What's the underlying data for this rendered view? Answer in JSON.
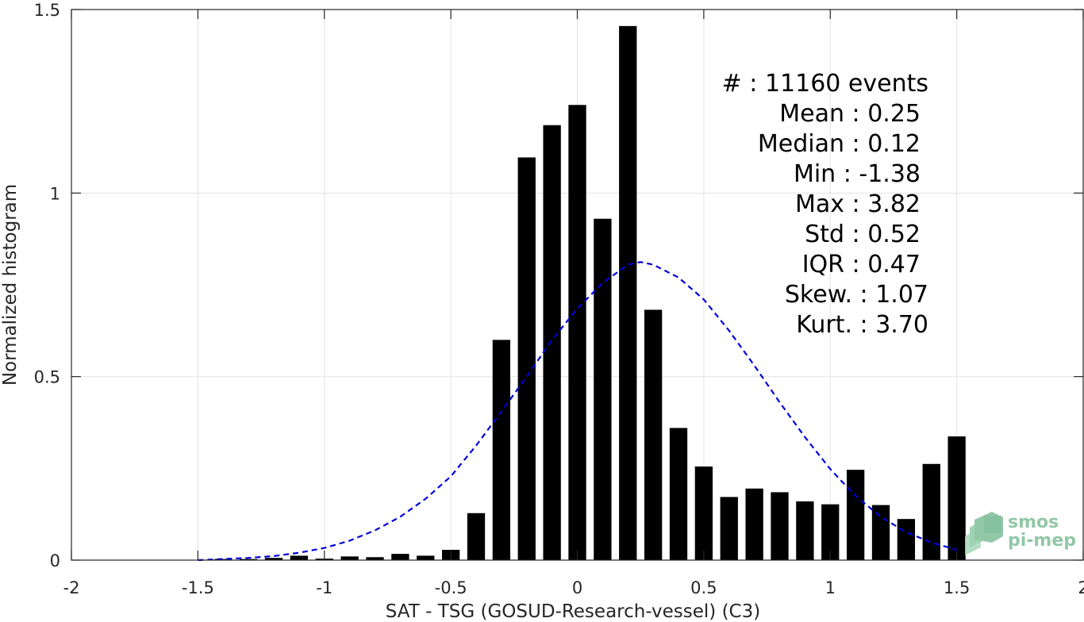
{
  "chart_data": {
    "type": "bar",
    "xlabel": "SAT - TSG (GOSUD-Research-vessel) (C3)",
    "ylabel": "Normalized histogram",
    "xlim": [
      -2,
      2
    ],
    "ylim": [
      0,
      1.5
    ],
    "xticks": [
      -2,
      -1.5,
      -1,
      -0.5,
      0,
      0.5,
      1,
      1.5,
      2
    ],
    "xtick_labels": [
      "-2",
      "-1.5",
      "-1",
      "-0.5",
      "0",
      "0.5",
      "1",
      "1.5",
      "2"
    ],
    "yticks": [
      0,
      0.5,
      1,
      1.5
    ],
    "ytick_labels": [
      "0",
      "0.5",
      "1",
      "1.5"
    ],
    "grid": true,
    "bar_color": "#000000",
    "bars": {
      "centers": [
        -1.4,
        -1.3,
        -1.2,
        -1.1,
        -1.0,
        -0.9,
        -0.8,
        -0.7,
        -0.6,
        -0.5,
        -0.4,
        -0.3,
        -0.2,
        -0.1,
        0.0,
        0.1,
        0.2,
        0.3,
        0.4,
        0.5,
        0.6,
        0.7,
        0.8,
        0.9,
        1.0,
        1.1,
        1.2,
        1.3,
        1.4,
        1.5
      ],
      "values": [
        0.003,
        0.003,
        0.006,
        0.012,
        0.004,
        0.01,
        0.008,
        0.017,
        0.012,
        0.028,
        0.128,
        0.6,
        1.097,
        1.185,
        1.24,
        0.93,
        1.455,
        0.682,
        0.36,
        0.255,
        0.172,
        0.195,
        0.185,
        0.16,
        0.152,
        0.246,
        0.15,
        0.112,
        0.262,
        0.337
      ],
      "width": 0.07
    },
    "fit_curve": {
      "style": "dashed",
      "color": "#0000dd",
      "x": [
        -1.5,
        -1.4,
        -1.3,
        -1.2,
        -1.1,
        -1.0,
        -0.9,
        -0.8,
        -0.7,
        -0.6,
        -0.5,
        -0.4,
        -0.3,
        -0.2,
        -0.1,
        0.0,
        0.1,
        0.2,
        0.25,
        0.3,
        0.4,
        0.5,
        0.6,
        0.7,
        0.8,
        0.9,
        1.0,
        1.1,
        1.2,
        1.3,
        1.4,
        1.5
      ],
      "y": [
        0.0,
        0.003,
        0.006,
        0.011,
        0.02,
        0.033,
        0.053,
        0.081,
        0.118,
        0.167,
        0.228,
        0.312,
        0.405,
        0.5,
        0.6,
        0.685,
        0.755,
        0.805,
        0.812,
        0.805,
        0.77,
        0.71,
        0.625,
        0.53,
        0.43,
        0.335,
        0.248,
        0.175,
        0.118,
        0.076,
        0.048,
        0.028
      ]
    },
    "stats": [
      {
        "label": "#  : 11160 events"
      },
      {
        "label": "Mean : 0.25"
      },
      {
        "label": "Median : 0.12"
      },
      {
        "label": "Min : -1.38"
      },
      {
        "label": "Max : 3.82"
      },
      {
        "label": "Std : 0.52"
      },
      {
        "label": "IQR : 0.47"
      },
      {
        "label": "Skew. : 1.07"
      },
      {
        "label": "Kurt. : 3.70"
      }
    ]
  },
  "logo": {
    "line1": "smos",
    "line2": "pi-mep",
    "color": "#7fbf9a"
  }
}
